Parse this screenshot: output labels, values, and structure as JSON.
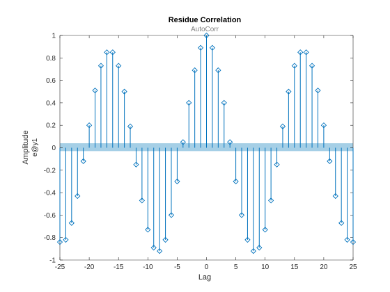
{
  "chart_data": {
    "type": "stem",
    "title": "Residue Correlation",
    "subtitle": "AutoCorr",
    "xlabel": "Lag",
    "ylabel": "Amplitude",
    "ylabel2": "e@y1",
    "xlim": [
      -25,
      25
    ],
    "ylim": [
      -1,
      1
    ],
    "xticks": [
      -25,
      -20,
      -15,
      -10,
      -5,
      0,
      5,
      10,
      15,
      20,
      25
    ],
    "yticks": [
      -1,
      -0.8,
      -0.6,
      -0.4,
      -0.2,
      0,
      0.2,
      0.4,
      0.6,
      0.8,
      1
    ],
    "ytick_labels": [
      "-1",
      "-0.8",
      "-0.6",
      "-0.4",
      "-0.2",
      "0",
      "0.2",
      "0.4",
      "0.6",
      "0.8",
      "1"
    ],
    "confidence_band": [
      -0.03,
      0.04
    ],
    "x": [
      -25,
      -24,
      -23,
      -22,
      -21,
      -20,
      -19,
      -18,
      -17,
      -16,
      -15,
      -14,
      -13,
      -12,
      -11,
      -10,
      -9,
      -8,
      -7,
      -6,
      -5,
      -4,
      -3,
      -2,
      -1,
      0,
      1,
      2,
      3,
      4,
      5,
      6,
      7,
      8,
      9,
      10,
      11,
      12,
      13,
      14,
      15,
      16,
      17,
      18,
      19,
      20,
      21,
      22,
      23,
      24,
      25
    ],
    "values": [
      -0.84,
      -0.82,
      -0.67,
      -0.43,
      -0.12,
      0.2,
      0.51,
      0.73,
      0.85,
      0.85,
      0.73,
      0.5,
      0.19,
      -0.15,
      -0.47,
      -0.73,
      -0.89,
      -0.92,
      -0.82,
      -0.6,
      -0.3,
      0.05,
      0.4,
      0.69,
      0.89,
      1.0,
      0.89,
      0.69,
      0.4,
      0.05,
      -0.3,
      -0.6,
      -0.82,
      -0.92,
      -0.89,
      -0.73,
      -0.47,
      -0.15,
      0.19,
      0.5,
      0.73,
      0.85,
      0.85,
      0.73,
      0.51,
      0.2,
      -0.12,
      -0.43,
      -0.67,
      -0.82,
      -0.84
    ],
    "colors": {
      "stem": "#0072BD",
      "band": "#A5CFE6",
      "axis": "#262626"
    },
    "marker": "diamond",
    "grid": false
  }
}
